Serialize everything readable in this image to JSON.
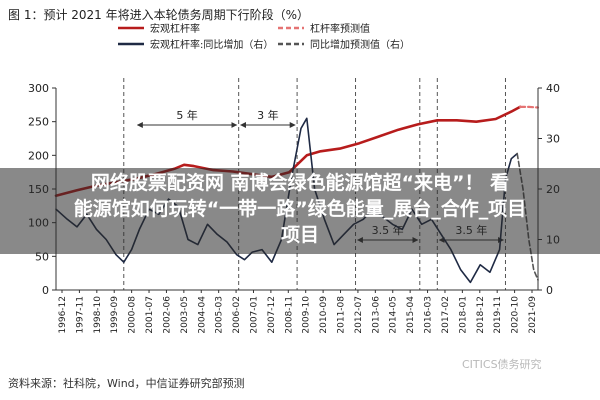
{
  "figure_title": "图 1：预计 2021 年将进入本轮债务周期下行阶段（%）",
  "source": "资料来源：社科院，Wind，中信证券研究部预测",
  "watermark": "CITICS债务研究",
  "overlay": {
    "line1": "网络股票配资网 南博会绿色能源馆超“来电”！ 看",
    "line2": "能源馆如何玩转“一带一路”绿色能量_展台_合作_项目",
    "line3": "项目"
  },
  "chart_data": {
    "type": "line",
    "title": "",
    "legend": {
      "placement": "top",
      "entries": [
        {
          "name": "宏观杠杆率",
          "color": "#b71c1c",
          "style": "solid"
        },
        {
          "name": "杠杆率预测值",
          "color": "#e57373",
          "style": "dashed"
        },
        {
          "name": "宏观杠杆率:同比增加（右）",
          "color": "#1f2a44",
          "style": "solid"
        },
        {
          "name": "同比增加预测值（右）",
          "color": "#555555",
          "style": "dashed"
        }
      ]
    },
    "left_axis": {
      "ylim": [
        0,
        300
      ],
      "ticks": [
        "0",
        "50",
        "100",
        "150",
        "200",
        "250",
        "300"
      ]
    },
    "right_axis": {
      "ylim": [
        0,
        40
      ],
      "ticks": [
        "0",
        "10",
        "20",
        "30",
        "40"
      ]
    },
    "x_ticks": [
      "1996-12",
      "1997-11",
      "1998-10",
      "1999-09",
      "2000-08",
      "2001-07",
      "2002-06",
      "2003-05",
      "2004-04",
      "2005-03",
      "2006-02",
      "2007-01",
      "2007-12",
      "2008-11",
      "2009-10",
      "2010-09",
      "2011-08",
      "2012-07",
      "2013-06",
      "2014-05",
      "2015-04",
      "2016-03",
      "2017-02",
      "2018-01",
      "2018-12",
      "2019-11",
      "2020-10",
      "2021-09"
    ],
    "x_range": [
      1996.92,
      2021.67
    ],
    "series": [
      {
        "name": "宏观杠杆率",
        "axis": "left",
        "color": "#b71c1c",
        "style": "solid",
        "width": 2.6,
        "points": [
          [
            1996.92,
            140
          ],
          [
            1998.0,
            148
          ],
          [
            1999.0,
            155
          ],
          [
            2000.0,
            160
          ],
          [
            2001.0,
            165
          ],
          [
            2002.0,
            172
          ],
          [
            2003.0,
            180
          ],
          [
            2003.5,
            186
          ],
          [
            2004.0,
            184
          ],
          [
            2005.0,
            178
          ],
          [
            2006.0,
            176
          ],
          [
            2007.0,
            172
          ],
          [
            2008.0,
            168
          ],
          [
            2008.9,
            175
          ],
          [
            2009.8,
            200
          ],
          [
            2010.5,
            206
          ],
          [
            2011.5,
            210
          ],
          [
            2012.5,
            218
          ],
          [
            2013.5,
            228
          ],
          [
            2014.5,
            238
          ],
          [
            2015.5,
            246
          ],
          [
            2016.5,
            252
          ],
          [
            2017.5,
            252
          ],
          [
            2018.5,
            250
          ],
          [
            2019.5,
            254
          ],
          [
            2020.3,
            265
          ],
          [
            2020.75,
            272
          ]
        ]
      },
      {
        "name": "杠杆率预测值",
        "axis": "left",
        "color": "#e57373",
        "style": "dashed",
        "width": 2.2,
        "points": [
          [
            2020.75,
            272
          ],
          [
            2021.2,
            272
          ],
          [
            2021.67,
            271
          ]
        ]
      },
      {
        "name": "宏观杠杆率:同比增加（右）",
        "axis": "right",
        "color": "#1f2a44",
        "style": "solid",
        "width": 1.6,
        "points": [
          [
            1996.92,
            16
          ],
          [
            1997.5,
            14
          ],
          [
            1998.0,
            12.5
          ],
          [
            1998.5,
            15
          ],
          [
            1999.0,
            12
          ],
          [
            1999.5,
            10
          ],
          [
            2000.0,
            7
          ],
          [
            2000.4,
            5.5
          ],
          [
            2000.8,
            8
          ],
          [
            2001.2,
            12
          ],
          [
            2001.7,
            16
          ],
          [
            2002.2,
            15
          ],
          [
            2002.7,
            18
          ],
          [
            2003.2,
            16.5
          ],
          [
            2003.7,
            10
          ],
          [
            2004.2,
            9
          ],
          [
            2004.7,
            13
          ],
          [
            2005.2,
            11
          ],
          [
            2005.7,
            9.5
          ],
          [
            2006.2,
            7
          ],
          [
            2006.6,
            6
          ],
          [
            2007.0,
            7.5
          ],
          [
            2007.5,
            8
          ],
          [
            2008.0,
            5.5
          ],
          [
            2008.5,
            10
          ],
          [
            2009.0,
            22
          ],
          [
            2009.5,
            32
          ],
          [
            2009.8,
            34
          ],
          [
            2010.2,
            20
          ],
          [
            2010.7,
            14
          ],
          [
            2011.2,
            9
          ],
          [
            2011.7,
            11
          ],
          [
            2012.2,
            13
          ],
          [
            2012.7,
            14
          ],
          [
            2013.2,
            16
          ],
          [
            2013.7,
            14.5
          ],
          [
            2014.2,
            13
          ],
          [
            2014.7,
            12
          ],
          [
            2015.2,
            16
          ],
          [
            2015.7,
            13
          ],
          [
            2016.2,
            14
          ],
          [
            2016.7,
            11
          ],
          [
            2017.2,
            8
          ],
          [
            2017.7,
            4
          ],
          [
            2018.2,
            1.5
          ],
          [
            2018.7,
            5
          ],
          [
            2019.2,
            3.5
          ],
          [
            2019.7,
            8
          ],
          [
            2020.0,
            22
          ],
          [
            2020.3,
            26
          ],
          [
            2020.6,
            27
          ]
        ]
      },
      {
        "name": "同比增加预测值（右）",
        "axis": "right",
        "color": "#555555",
        "style": "dashed",
        "width": 1.6,
        "points": [
          [
            2020.6,
            27
          ],
          [
            2020.9,
            20
          ],
          [
            2021.2,
            10
          ],
          [
            2021.45,
            4
          ],
          [
            2021.67,
            2
          ]
        ]
      }
    ],
    "annotations": [
      {
        "text": "5 年",
        "x_start": 2001.0,
        "x_end": 2006.3,
        "row": "upper"
      },
      {
        "text": "3 年",
        "x_start": 2006.3,
        "x_end": 2009.3,
        "row": "upper"
      },
      {
        "text": "3.5 年",
        "x_start": 2012.3,
        "x_end": 2015.6,
        "row": "lower"
      },
      {
        "text": "3.5 年",
        "x_start": 2016.5,
        "x_end": 2020.0,
        "row": "lower"
      }
    ],
    "vertical_markers": [
      2000.4,
      2006.3,
      2009.3,
      2012.3,
      2015.6,
      2016.5,
      2020.0
    ]
  }
}
